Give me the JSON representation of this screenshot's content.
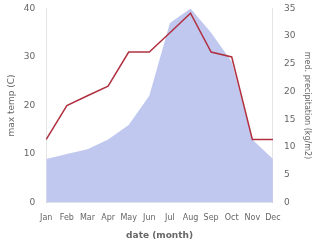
{
  "chart_data": {
    "type": "line",
    "xlabel": "date (month)",
    "ylabel": "max temp (C)",
    "y2label": "med. precipitation (kg/m2)",
    "categories": [
      "Jan",
      "Feb",
      "Mar",
      "Apr",
      "May",
      "Jun",
      "Jul",
      "Aug",
      "Sep",
      "Oct",
      "Nov",
      "Dec"
    ],
    "series": [
      {
        "type": "area",
        "color": "#c0c8f0",
        "values": [
          9,
          10,
          11,
          13,
          16,
          22,
          37,
          40,
          35,
          29,
          13,
          9
        ]
      },
      {
        "type": "line",
        "color": "#b03040",
        "values": [
          13,
          20,
          22,
          24,
          31,
          31,
          35,
          39,
          31,
          30,
          13,
          13
        ]
      }
    ],
    "ylim": [
      0,
      40
    ],
    "yticks": [
      0,
      10,
      20,
      30,
      40
    ],
    "y2lim": [
      0,
      35
    ],
    "y2ticks": [
      0,
      5,
      10,
      15,
      20,
      25,
      30,
      35
    ],
    "grid": false
  }
}
